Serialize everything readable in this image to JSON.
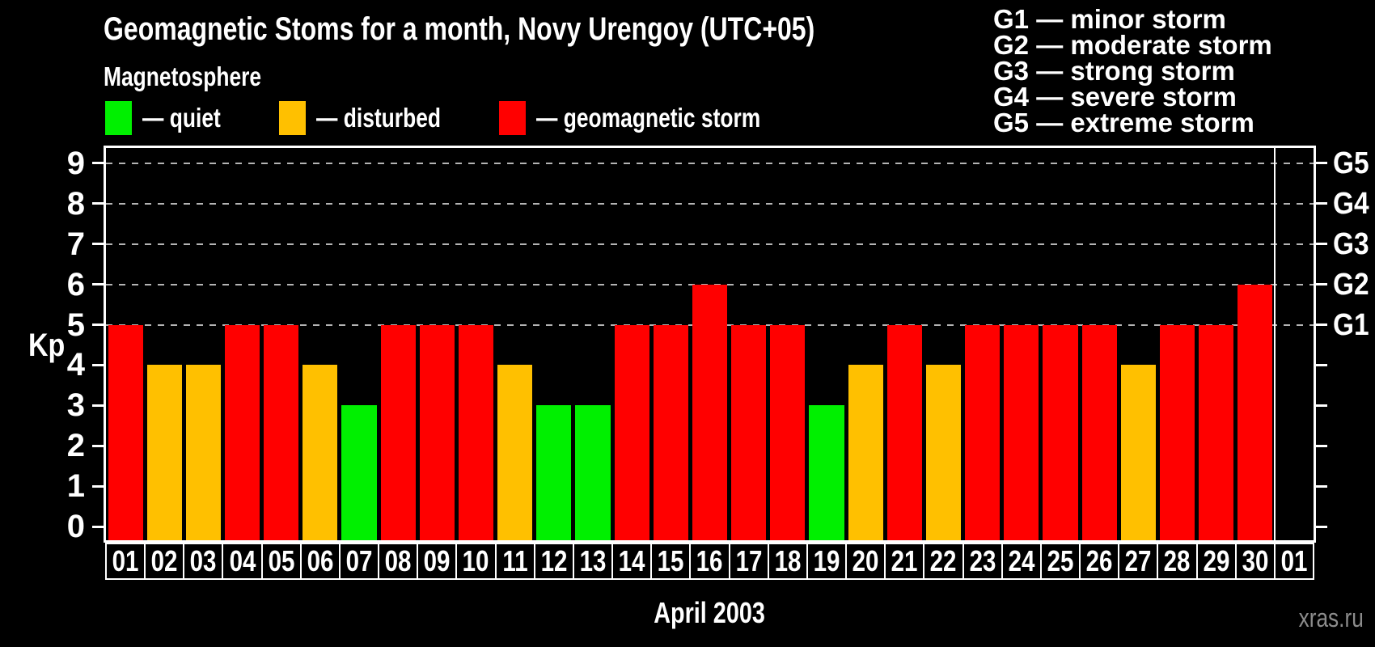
{
  "header": {
    "title": "Geomagnetic Stoms for a month, Novy Urengoy (UTC+05)"
  },
  "magnetosphere_legend": {
    "heading": "Magnetosphere",
    "items": [
      {
        "key": "quiet",
        "label": "— quiet",
        "color": "#00f000"
      },
      {
        "key": "disturbed",
        "label": "— disturbed",
        "color": "#ffc000"
      },
      {
        "key": "storm",
        "label": "— geomagnetic storm",
        "color": "#ff0000"
      }
    ]
  },
  "gscale_legend": {
    "items": [
      "G1 — minor storm",
      "G2 — moderate storm",
      "G3 — strong storm",
      "G4 — severe storm",
      "G5 — extreme storm"
    ]
  },
  "chart_data": {
    "type": "bar",
    "title": "Geomagnetic Stoms for a month, Novy Urengoy (UTC+05)",
    "xlabel": "April 2003",
    "ylabel": "Kp",
    "ylim": [
      0,
      9
    ],
    "grid": "horizontal dashed gridlines at Kp 5-9 only",
    "legend_position": "top-left and top-right",
    "yticks_left": [
      0,
      1,
      2,
      3,
      4,
      5,
      6,
      7,
      8,
      9
    ],
    "gridlines_at": [
      5,
      6,
      7,
      8,
      9
    ],
    "right_axis_labels": [
      {
        "kp": 5,
        "label": "G1"
      },
      {
        "kp": 6,
        "label": "G2"
      },
      {
        "kp": 7,
        "label": "G3"
      },
      {
        "kp": 8,
        "label": "G4"
      },
      {
        "kp": 9,
        "label": "G5"
      }
    ],
    "categories": [
      "01",
      "02",
      "03",
      "04",
      "05",
      "06",
      "07",
      "08",
      "09",
      "10",
      "11",
      "12",
      "13",
      "14",
      "15",
      "16",
      "17",
      "18",
      "19",
      "20",
      "21",
      "22",
      "23",
      "24",
      "25",
      "26",
      "27",
      "28",
      "29",
      "30",
      "01"
    ],
    "series": [
      {
        "name": "Kp index",
        "values": [
          5,
          4,
          4,
          5,
          5,
          4,
          3,
          5,
          5,
          5,
          4,
          3,
          3,
          5,
          5,
          6,
          5,
          5,
          3,
          4,
          5,
          4,
          5,
          5,
          5,
          5,
          4,
          5,
          5,
          6,
          null
        ],
        "statuses": [
          "storm",
          "disturbed",
          "disturbed",
          "storm",
          "storm",
          "disturbed",
          "quiet",
          "storm",
          "storm",
          "storm",
          "disturbed",
          "quiet",
          "quiet",
          "storm",
          "storm",
          "storm",
          "storm",
          "storm",
          "quiet",
          "disturbed",
          "storm",
          "disturbed",
          "storm",
          "storm",
          "storm",
          "storm",
          "disturbed",
          "storm",
          "storm",
          "storm",
          null
        ]
      }
    ],
    "status_colors": {
      "quiet": "#00f000",
      "disturbed": "#ffc000",
      "storm": "#ff0000"
    }
  },
  "footer": {
    "xlabel": "April 2003",
    "watermark": "xras.ru"
  }
}
